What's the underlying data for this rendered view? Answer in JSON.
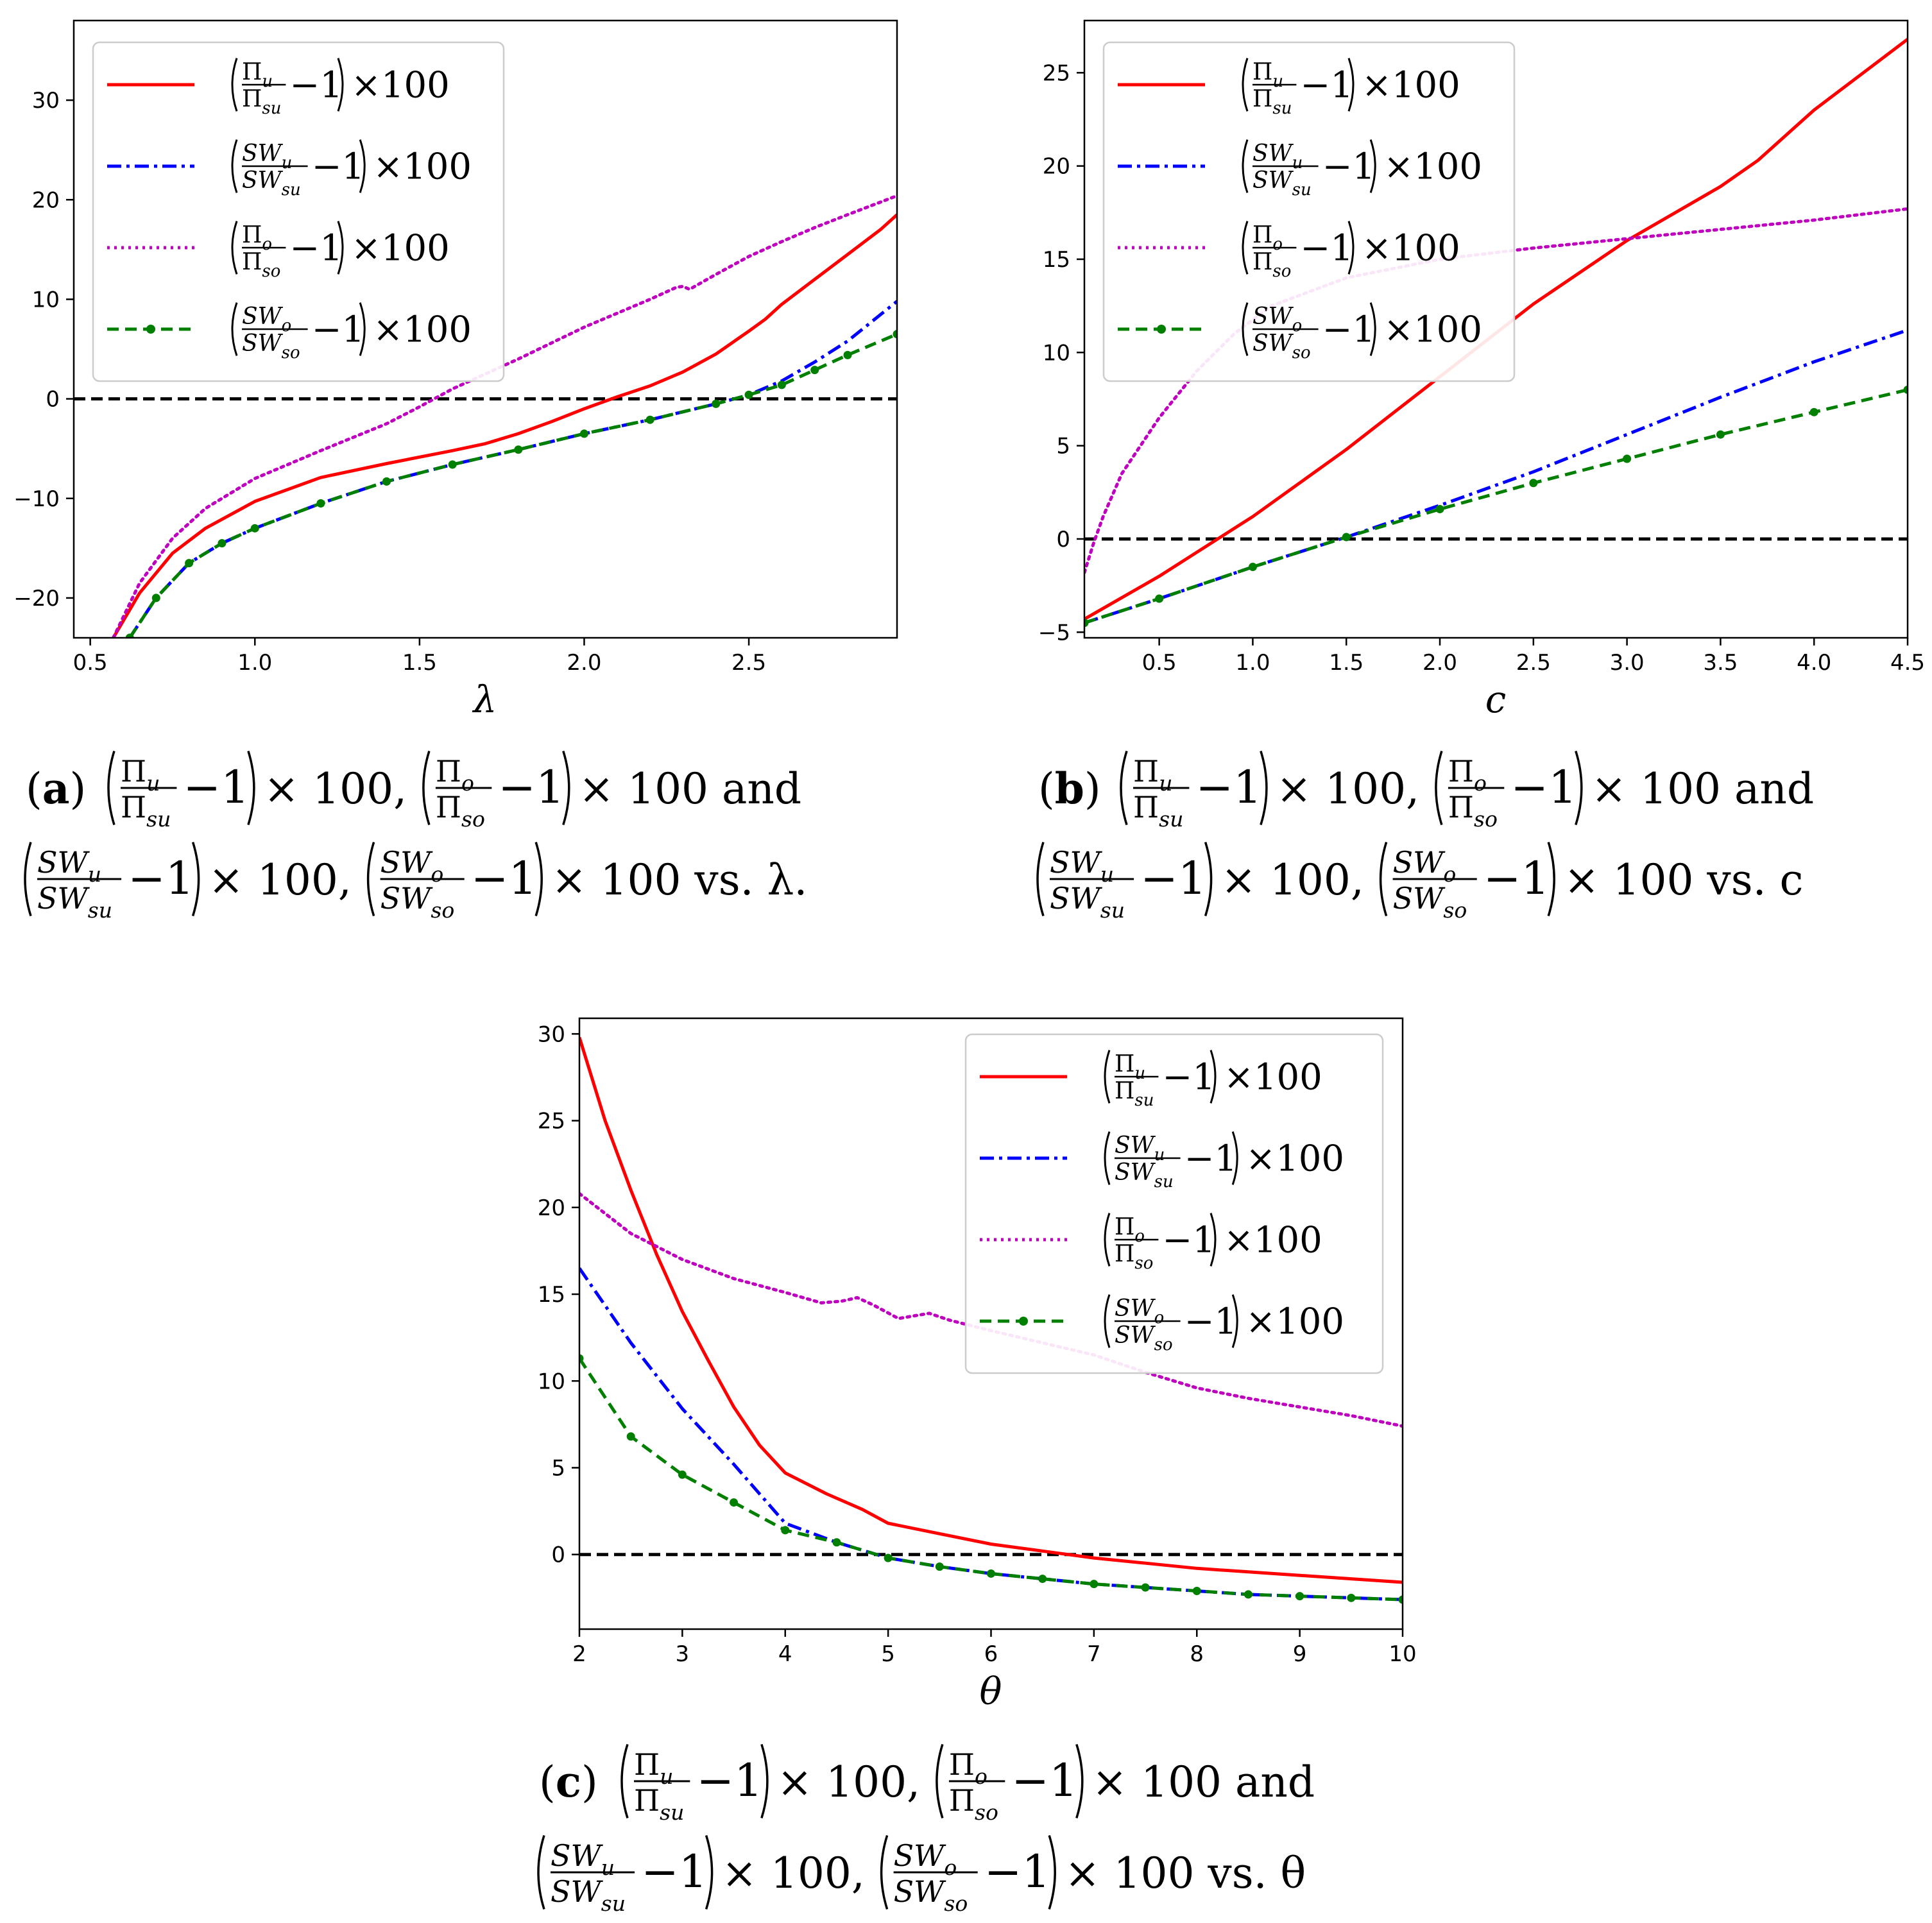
{
  "figure": {
    "colors": {
      "pi_u": "#ff0000",
      "sw_u": "#0000ff",
      "pi_o": "#bf00bf",
      "sw_o": "#007f00",
      "zero_line": "#000000"
    }
  },
  "legend_tokens": {
    "Pi": "Π",
    "SW": "SW",
    "u": "u",
    "su": "su",
    "o": "o",
    "so": "so",
    "minus_one": "−1",
    "times_100": "×100"
  },
  "captions": {
    "a": {
      "tag": "a",
      "line1_end": " × 100 and",
      "line2_end": " × 100 vs. λ."
    },
    "b": {
      "tag": "b",
      "line1_end": " × 100 and",
      "line2_end": " × 100 vs. c"
    },
    "c": {
      "tag": "c",
      "line1_end": " × 100 and",
      "line2_end": " × 100 vs. θ"
    },
    "sep": " × 100, "
  },
  "chart_data": [
    {
      "id": "a",
      "type": "line",
      "title": "",
      "xlabel": "λ",
      "ylabel": "",
      "xlim": [
        0.45,
        2.95
      ],
      "ylim": [
        -24,
        38
      ],
      "xticks": [
        0.5,
        1.0,
        1.5,
        2.0,
        2.5
      ],
      "xtick_labels": [
        "0.5",
        "1.0",
        "1.5",
        "2.0",
        "2.5"
      ],
      "yticks": [
        -20,
        -10,
        0,
        10,
        20,
        30
      ],
      "ytick_labels": [
        "−20",
        "−10",
        "0",
        "10",
        "20",
        "30"
      ],
      "legend_position": "upper-left",
      "series": [
        {
          "name": "(Π_u/Π_su − 1) × 100",
          "key": "pi_u",
          "style": "solid",
          "x": [
            0.57,
            0.65,
            0.75,
            0.85,
            1.0,
            1.2,
            1.4,
            1.6,
            1.7,
            1.8,
            1.9,
            2.0,
            2.1,
            2.2,
            2.3,
            2.4,
            2.5,
            2.55,
            2.6,
            2.7,
            2.8,
            2.9,
            2.95
          ],
          "y": [
            -24,
            -19.5,
            -15.5,
            -13,
            -10.3,
            -7.9,
            -6.5,
            -5.2,
            -4.5,
            -3.5,
            -2.3,
            -1,
            0.2,
            1.3,
            2.7,
            4.5,
            6.8,
            8,
            9.5,
            12,
            14.5,
            17,
            18.5
          ]
        },
        {
          "name": "(SW_u/SW_su − 1) × 100",
          "key": "sw_u",
          "style": "dashdot",
          "x": [
            0.62,
            0.7,
            0.8,
            0.9,
            1.0,
            1.2,
            1.4,
            1.6,
            1.8,
            2.0,
            2.2,
            2.4,
            2.5,
            2.6,
            2.7,
            2.8,
            2.95
          ],
          "y": [
            -24,
            -20,
            -16.5,
            -14.5,
            -13,
            -10.5,
            -8.3,
            -6.6,
            -5.1,
            -3.5,
            -2.1,
            -0.5,
            0.4,
            1.8,
            3.7,
            5.8,
            9.8
          ]
        },
        {
          "name": "(Π_o/Π_so − 1) × 100",
          "key": "pi_o",
          "style": "dotted",
          "x": [
            0.57,
            0.65,
            0.75,
            0.85,
            1.0,
            1.2,
            1.4,
            1.5,
            1.6,
            1.7,
            1.8,
            1.9,
            2.0,
            2.1,
            2.2,
            2.28,
            2.3,
            2.32,
            2.4,
            2.5,
            2.6,
            2.7,
            2.8,
            2.95
          ],
          "y": [
            -24,
            -18.5,
            -14,
            -11,
            -8,
            -5.2,
            -2.5,
            -0.8,
            1,
            2.5,
            4,
            5.6,
            7.2,
            8.6,
            10,
            11.2,
            11.3,
            11.0,
            12.5,
            14.3,
            15.8,
            17.2,
            18.5,
            20.4
          ]
        },
        {
          "name": "(SW_o/SW_so − 1) × 100",
          "key": "sw_o",
          "style": "dashed-dot-markers",
          "x": [
            0.62,
            0.7,
            0.8,
            0.9,
            1.0,
            1.2,
            1.4,
            1.6,
            1.8,
            2.0,
            2.2,
            2.4,
            2.5,
            2.6,
            2.7,
            2.8,
            2.95
          ],
          "y": [
            -24,
            -20,
            -16.5,
            -14.5,
            -13,
            -10.5,
            -8.3,
            -6.6,
            -5.1,
            -3.5,
            -2.1,
            -0.5,
            0.4,
            1.4,
            2.9,
            4.4,
            6.5
          ]
        }
      ]
    },
    {
      "id": "b",
      "type": "line",
      "title": "",
      "xlabel": "c",
      "ylabel": "",
      "xlim": [
        0.1,
        4.5
      ],
      "ylim": [
        -5.3,
        27.8
      ],
      "xticks": [
        0.5,
        1.0,
        1.5,
        2.0,
        2.5,
        3.0,
        3.5,
        4.0,
        4.5
      ],
      "xtick_labels": [
        "0.5",
        "1.0",
        "1.5",
        "2.0",
        "2.5",
        "3.0",
        "3.5",
        "4.0",
        "4.5"
      ],
      "yticks": [
        -5,
        0,
        5,
        10,
        15,
        20,
        25
      ],
      "ytick_labels": [
        "−5",
        "0",
        "5",
        "10",
        "15",
        "20",
        "25"
      ],
      "legend_position": "upper-left",
      "series": [
        {
          "name": "(Π_u/Π_su − 1) × 100",
          "key": "pi_u",
          "style": "solid",
          "x": [
            0.1,
            0.5,
            1.0,
            1.5,
            2.0,
            2.5,
            3.0,
            3.5,
            3.7,
            4.0,
            4.5
          ],
          "y": [
            -4.3,
            -2,
            1.2,
            4.8,
            8.7,
            12.6,
            16,
            18.9,
            20.3,
            23,
            26.8
          ]
        },
        {
          "name": "(SW_u/SW_su − 1) × 100",
          "key": "sw_u",
          "style": "dashdot",
          "x": [
            0.1,
            0.5,
            1.0,
            1.5,
            2.0,
            2.5,
            3.0,
            3.5,
            4.0,
            4.5
          ],
          "y": [
            -4.5,
            -3.2,
            -1.5,
            0.1,
            1.8,
            3.6,
            5.6,
            7.6,
            9.5,
            11.2
          ]
        },
        {
          "name": "(Π_o/Π_so − 1) × 100",
          "key": "pi_o",
          "style": "dotted",
          "x": [
            0.1,
            0.15,
            0.2,
            0.3,
            0.5,
            0.7,
            0.9,
            1.1,
            1.5,
            2.0,
            2.5,
            3.0,
            3.5,
            4.0,
            4.5
          ],
          "y": [
            -1.8,
            -0.2,
            1.2,
            3.5,
            6.5,
            9,
            11,
            12.5,
            14,
            15,
            15.6,
            16.1,
            16.6,
            17.1,
            17.7
          ]
        },
        {
          "name": "(SW_o/SW_so − 1) × 100",
          "key": "sw_o",
          "style": "dashed-dot-markers",
          "x": [
            0.1,
            0.5,
            1.0,
            1.5,
            2.0,
            2.5,
            3.0,
            3.5,
            4.0,
            4.5
          ],
          "y": [
            -4.5,
            -3.2,
            -1.5,
            0.1,
            1.6,
            3.0,
            4.3,
            5.6,
            6.8,
            8.0
          ]
        }
      ]
    },
    {
      "id": "c",
      "type": "line",
      "title": "",
      "xlabel": "θ",
      "ylabel": "",
      "xlim": [
        2,
        10
      ],
      "ylim": [
        -4.3,
        30.9
      ],
      "xticks": [
        2,
        3,
        4,
        5,
        6,
        7,
        8,
        9,
        10
      ],
      "xtick_labels": [
        "2",
        "3",
        "4",
        "5",
        "6",
        "7",
        "8",
        "9",
        "10"
      ],
      "yticks": [
        0,
        5,
        10,
        15,
        20,
        25,
        30
      ],
      "ytick_labels": [
        "0",
        "5",
        "10",
        "15",
        "20",
        "25",
        "30"
      ],
      "legend_position": "upper-right",
      "series": [
        {
          "name": "(Π_u/Π_su − 1) × 100",
          "key": "pi_u",
          "style": "solid",
          "x": [
            2.0,
            2.25,
            2.5,
            2.75,
            3.0,
            3.25,
            3.5,
            3.75,
            4.0,
            4.4,
            4.75,
            5.0,
            5.5,
            6.0,
            6.5,
            7.0,
            7.5,
            8.0,
            8.5,
            9.0,
            9.5,
            10.0
          ],
          "y": [
            29.8,
            25,
            21,
            17.3,
            14,
            11.2,
            8.5,
            6.3,
            4.7,
            3.5,
            2.6,
            1.8,
            1.2,
            0.6,
            0.2,
            -0.2,
            -0.5,
            -0.8,
            -1.0,
            -1.2,
            -1.4,
            -1.6
          ]
        },
        {
          "name": "(SW_u/SW_su − 1) × 100",
          "key": "sw_u",
          "style": "dashdot",
          "x": [
            2.0,
            2.5,
            3.0,
            3.5,
            4.0,
            4.5,
            5.0,
            5.5,
            6.0,
            6.5,
            7.0,
            7.5,
            8.0,
            8.5,
            9.0,
            9.5,
            10.0
          ],
          "y": [
            16.5,
            12.2,
            8.4,
            5.2,
            1.8,
            0.7,
            -0.2,
            -0.7,
            -1.1,
            -1.4,
            -1.7,
            -1.9,
            -2.1,
            -2.3,
            -2.4,
            -2.5,
            -2.6
          ]
        },
        {
          "name": "(Π_o/Π_so − 1) × 100",
          "key": "pi_o",
          "style": "dotted",
          "x": [
            2.0,
            2.5,
            3.0,
            3.5,
            4.0,
            4.35,
            4.55,
            4.7,
            4.85,
            5.1,
            5.4,
            5.6,
            6.0,
            6.5,
            7.0,
            7.5,
            8.0,
            8.5,
            9.0,
            9.5,
            10.0
          ],
          "y": [
            20.8,
            18.5,
            17,
            15.9,
            15.1,
            14.5,
            14.6,
            14.8,
            14.4,
            13.6,
            13.9,
            13.5,
            12.9,
            12.2,
            11.5,
            10.5,
            9.6,
            9.0,
            8.5,
            8.0,
            7.4
          ]
        },
        {
          "name": "(SW_o/SW_so − 1) × 100",
          "key": "sw_o",
          "style": "dashed-dot-markers",
          "x": [
            2.0,
            2.5,
            3.0,
            3.5,
            4.0,
            4.5,
            5.0,
            5.5,
            6.0,
            6.5,
            7.0,
            7.5,
            8.0,
            8.5,
            9.0,
            9.5,
            10.0
          ],
          "y": [
            11.3,
            6.8,
            4.6,
            3.0,
            1.4,
            0.7,
            -0.2,
            -0.7,
            -1.1,
            -1.4,
            -1.7,
            -1.9,
            -2.1,
            -2.3,
            -2.4,
            -2.5,
            -2.6
          ]
        }
      ]
    }
  ]
}
